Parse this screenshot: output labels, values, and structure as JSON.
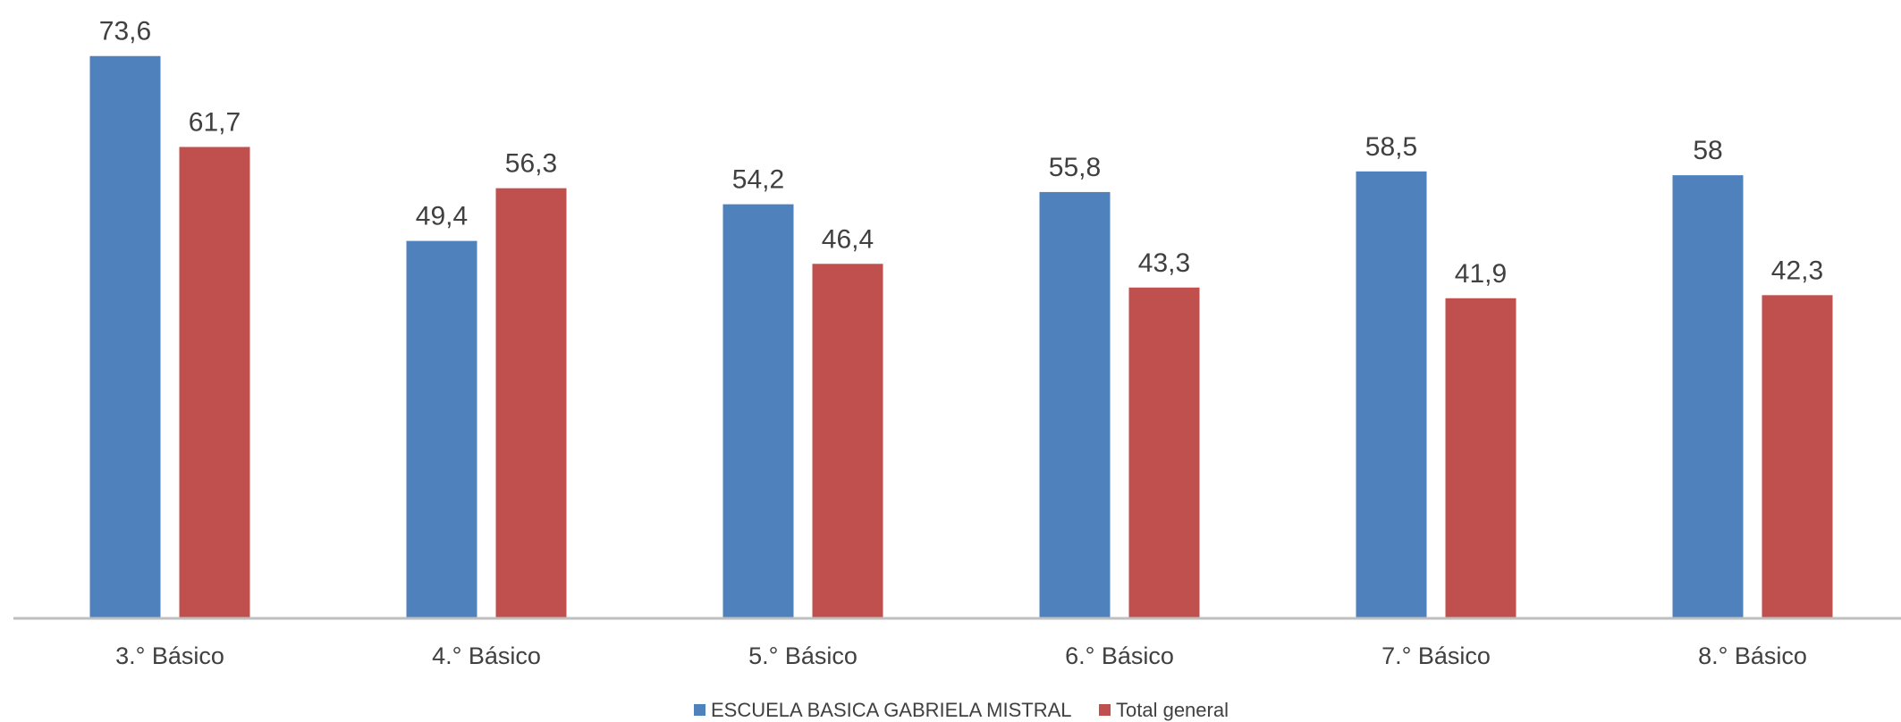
{
  "chart_data": {
    "type": "bar",
    "title": "",
    "xlabel": "",
    "ylabel": "",
    "ylim": [
      0,
      80
    ],
    "grid": false,
    "legend_position": "bottom",
    "categories": [
      "3.° Básico",
      "4.° Básico",
      "5.° Básico",
      "6.° Básico",
      "7.° Básico",
      "8.° Básico"
    ],
    "series": [
      {
        "name": "ESCUELA BASICA GABRIELA MISTRAL",
        "color": "#4F81BD",
        "values": [
          73.6,
          49.4,
          54.2,
          55.8,
          58.5,
          58
        ],
        "labels": [
          "73,6",
          "49,4",
          "54,2",
          "55,8",
          "58,5",
          "58"
        ]
      },
      {
        "name": "Total general",
        "color": "#C0504D",
        "values": [
          61.7,
          56.3,
          46.4,
          43.3,
          41.9,
          42.3
        ],
        "labels": [
          "61,7",
          "56,3",
          "46,4",
          "43,3",
          "41,9",
          "42,3"
        ]
      }
    ]
  }
}
